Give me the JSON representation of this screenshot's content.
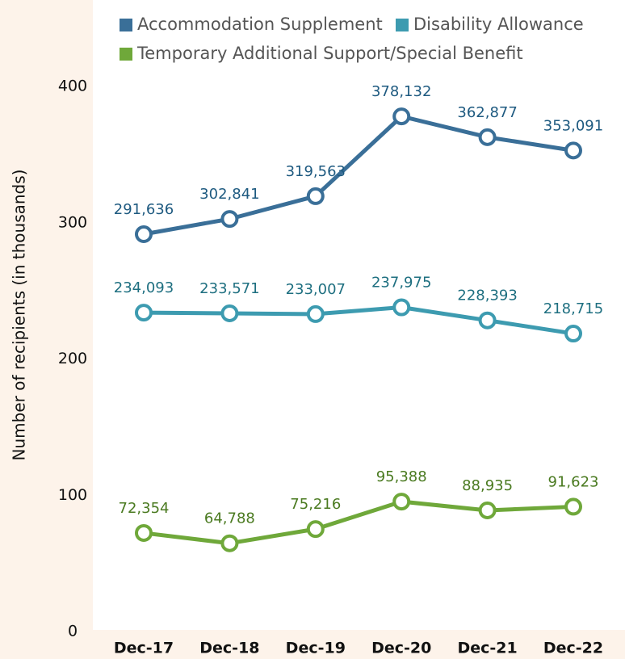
{
  "chart_data": {
    "type": "line",
    "y_label": "Number of recipients (in thousands)",
    "categories": [
      "Dec-17",
      "Dec-18",
      "Dec-19",
      "Dec-20",
      "Dec-21",
      "Dec-22"
    ],
    "series": [
      {
        "name": "Accommodation Supplement",
        "color": "#3a6f98",
        "values": [
          291.636,
          302.841,
          319.563,
          378.132,
          362.877,
          353.091
        ],
        "value_labels": [
          "291,636",
          "302,841",
          "319,563",
          "378,132",
          "362,877",
          "353,091"
        ]
      },
      {
        "name": "Disability Allowance",
        "color": "#3d9bb0",
        "values": [
          234.093,
          233.571,
          233.007,
          237.975,
          228.393,
          218.715
        ],
        "value_labels": [
          "234,093",
          "233,571",
          "233,007",
          "237,975",
          "228,393",
          "218,715"
        ]
      },
      {
        "name": "Temporary Additional Support/Special Benefit",
        "color": "#6fa83a",
        "values": [
          72.354,
          64.788,
          75.216,
          95.388,
          88.935,
          91.623
        ],
        "value_labels": [
          "72,354",
          "64,788",
          "75,216",
          "95,388",
          "88,935",
          "91,623"
        ]
      }
    ],
    "ylim": [
      0,
      460
    ],
    "yticks": [
      0,
      100,
      200,
      300,
      400
    ],
    "grid": false
  }
}
